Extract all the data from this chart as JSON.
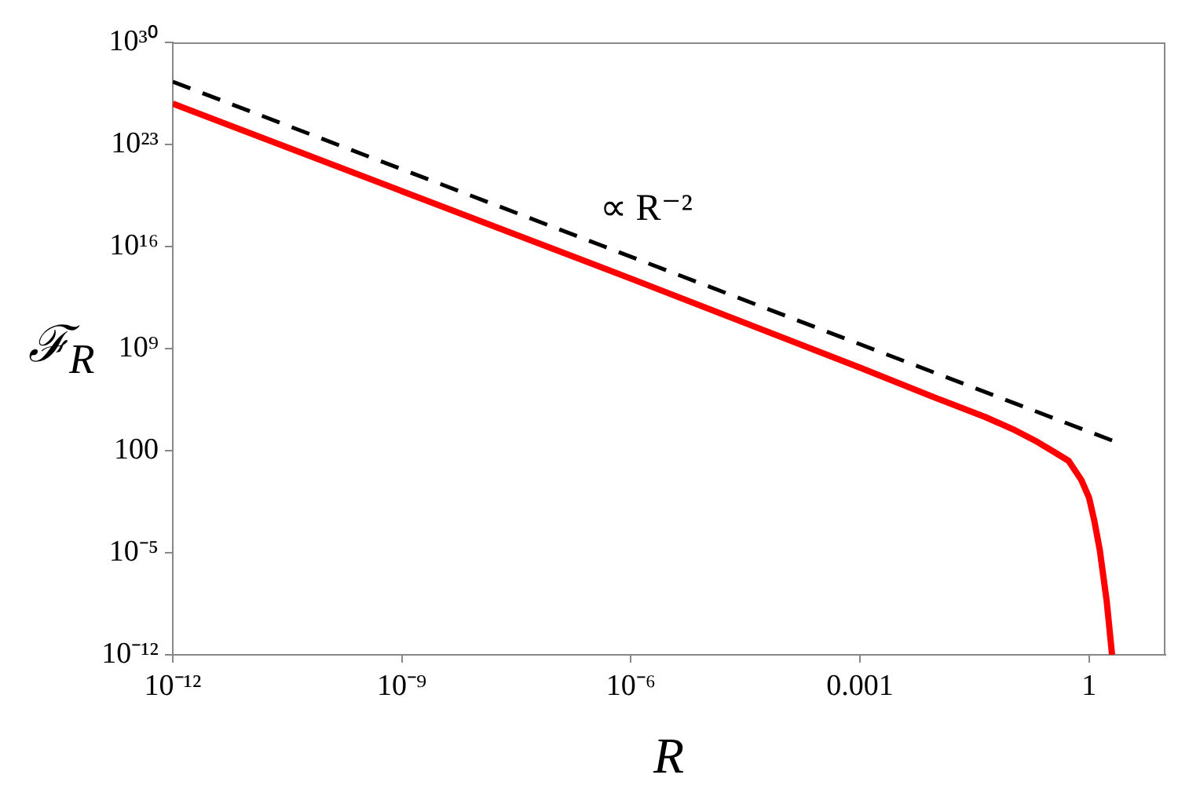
{
  "chart_data": {
    "type": "line",
    "xlabel": "R",
    "ylabel": "ℱ$_{R}$",
    "log": "xy",
    "legend": false,
    "marker": "none",
    "xlim": [
      1e-12,
      10
    ],
    "xticks": [
      {
        "value": 1e-12,
        "label": "10⁻¹²"
      },
      {
        "value": 1e-09,
        "label": "10⁻⁹"
      },
      {
        "value": 1e-06,
        "label": "10⁻⁶"
      },
      0.001,
      1
    ],
    "ylim": [
      1e-12,
      1e+30
    ],
    "yticks": [
      {
        "value": 1e-12,
        "label": "10⁻¹²"
      },
      {
        "value": 1e-05,
        "label": "10⁻⁵"
      },
      100,
      {
        "value": 1000000000.0,
        "label": "10⁹"
      },
      {
        "value": 1e+16,
        "label": "10¹⁶"
      },
      {
        "value": 1e+23,
        "label": "10²³"
      },
      {
        "value": 1e+30,
        "label": "10³⁰"
      }
    ],
    "series": [
      {
        "color": "#ff0000",
        "line_style": "solid",
        "x": [
          1e-12,
          1e-09,
          1e-06,
          0.001,
          0.01,
          0.044,
          0.1,
          0.21,
          0.35,
          0.54,
          0.79,
          1,
          1.17,
          1.38,
          1.7,
          2
        ],
        "values": [
          6.3e+25,
          6.3e+19,
          63000000000000.0,
          50000000.0,
          400000.0,
          20000.0,
          3000,
          400,
          80,
          20,
          1,
          0.06,
          0.0016,
          1.6e-05,
          5e-09,
          1e-12
        ]
      },
      {
        "color": "#000000",
        "line_style": "dashed",
        "x": [
          1e-12,
          2
        ],
        "values": [
          2e+27,
          500
        ]
      }
    ],
    "annotations": [
      "∝ R⁻²"
    ]
  }
}
